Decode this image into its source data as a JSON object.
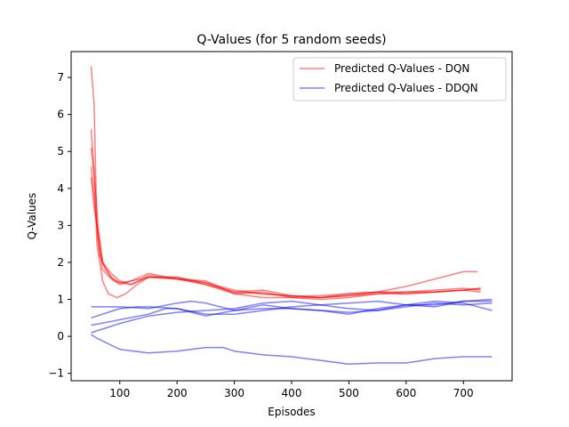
{
  "chart_data": {
    "type": "line",
    "title": "Q-Values (for 5 random seeds)",
    "xlabel": "Episodes",
    "ylabel": "Q-Values",
    "xlim": [
      15,
      785
    ],
    "ylim": [
      -1.2,
      7.7
    ],
    "xticks": [
      100,
      200,
      300,
      400,
      500,
      600,
      700
    ],
    "yticks": [
      -1,
      0,
      1,
      2,
      3,
      4,
      5,
      6,
      7
    ],
    "grid": false,
    "legend_position": "top-right",
    "colors": {
      "DQN": "#ff0000",
      "DDQN": "#0000ff"
    },
    "series": [
      {
        "name": "Predicted Q-Values - DQN",
        "group": "DQN",
        "x": [
          50,
          55,
          60,
          65,
          75,
          90,
          100,
          110,
          120,
          150,
          200,
          250,
          300,
          350,
          400,
          450,
          500,
          550,
          600,
          650,
          700,
          725
        ],
        "y": [
          7.3,
          6.3,
          3.0,
          2.2,
          1.8,
          1.5,
          1.4,
          1.45,
          1.5,
          1.7,
          1.55,
          1.4,
          1.2,
          1.15,
          1.08,
          1.1,
          1.15,
          1.2,
          1.35,
          1.55,
          1.75,
          1.75
        ]
      },
      {
        "name": "",
        "group": "DQN",
        "x": [
          50,
          55,
          60,
          70,
          80,
          95,
          110,
          130,
          150,
          200,
          250,
          300,
          350,
          400,
          450,
          500,
          550,
          600,
          650,
          700,
          730
        ],
        "y": [
          5.6,
          4.5,
          2.5,
          1.5,
          1.15,
          1.05,
          1.15,
          1.4,
          1.6,
          1.6,
          1.4,
          1.15,
          1.05,
          1.05,
          1.05,
          1.1,
          1.15,
          1.15,
          1.2,
          1.25,
          1.3
        ]
      },
      {
        "name": "",
        "group": "DQN",
        "x": [
          50,
          55,
          62,
          70,
          85,
          100,
          120,
          150,
          200,
          250,
          300,
          350,
          400,
          450,
          500,
          550,
          600,
          650,
          700,
          730
        ],
        "y": [
          5.1,
          4.4,
          3.0,
          2.0,
          1.6,
          1.45,
          1.4,
          1.65,
          1.55,
          1.45,
          1.25,
          1.15,
          1.1,
          1.05,
          1.15,
          1.2,
          1.15,
          1.2,
          1.25,
          1.3
        ]
      },
      {
        "name": "",
        "group": "DQN",
        "x": [
          50,
          55,
          62,
          70,
          85,
          100,
          120,
          150,
          200,
          250,
          300,
          350,
          400,
          450,
          500,
          550,
          600,
          650,
          700,
          730
        ],
        "y": [
          4.6,
          3.8,
          2.6,
          1.8,
          1.55,
          1.45,
          1.5,
          1.6,
          1.55,
          1.5,
          1.15,
          1.2,
          1.05,
          1.0,
          1.05,
          1.15,
          1.2,
          1.25,
          1.3,
          1.25
        ]
      },
      {
        "name": "",
        "group": "DQN",
        "x": [
          50,
          55,
          62,
          70,
          85,
          100,
          120,
          150,
          200,
          250,
          300,
          350,
          400,
          450,
          500,
          550,
          600,
          650,
          700,
          730
        ],
        "y": [
          4.3,
          3.5,
          2.8,
          2.0,
          1.7,
          1.5,
          1.4,
          1.6,
          1.6,
          1.45,
          1.2,
          1.25,
          1.1,
          1.05,
          1.1,
          1.2,
          1.2,
          1.2,
          1.25,
          1.2
        ]
      },
      {
        "name": "Predicted Q-Values - DDQN",
        "group": "DDQN",
        "x": [
          50,
          100,
          150,
          200,
          225,
          250,
          300,
          350,
          400,
          450,
          500,
          550,
          600,
          650,
          700,
          750
        ],
        "y": [
          0.8,
          0.8,
          0.75,
          0.9,
          0.95,
          0.9,
          0.7,
          0.75,
          0.75,
          0.7,
          0.6,
          0.75,
          0.85,
          0.85,
          0.95,
          0.95
        ]
      },
      {
        "name": "",
        "group": "DDQN",
        "x": [
          50,
          100,
          130,
          150,
          200,
          250,
          300,
          350,
          400,
          450,
          500,
          550,
          600,
          650,
          700,
          750
        ],
        "y": [
          0.5,
          0.75,
          0.8,
          0.8,
          0.75,
          0.6,
          0.6,
          0.7,
          0.8,
          0.85,
          0.75,
          0.7,
          0.85,
          0.95,
          0.9,
          0.7
        ]
      },
      {
        "name": "",
        "group": "DDQN",
        "x": [
          50,
          100,
          150,
          180,
          200,
          250,
          300,
          350,
          400,
          450,
          500,
          550,
          600,
          650,
          700,
          750
        ],
        "y": [
          0.3,
          0.45,
          0.6,
          0.75,
          0.75,
          0.55,
          0.7,
          0.85,
          0.75,
          0.7,
          0.65,
          0.7,
          0.8,
          0.9,
          0.85,
          0.9
        ]
      },
      {
        "name": "",
        "group": "DDQN",
        "x": [
          50,
          100,
          150,
          200,
          250,
          300,
          350,
          400,
          450,
          500,
          550,
          600,
          650,
          700,
          750
        ],
        "y": [
          0.1,
          0.35,
          0.55,
          0.65,
          0.7,
          0.75,
          0.9,
          0.95,
          0.85,
          0.9,
          0.95,
          0.85,
          0.8,
          0.95,
          1.0
        ]
      },
      {
        "name": "",
        "group": "DDQN",
        "x": [
          50,
          60,
          100,
          150,
          200,
          250,
          280,
          300,
          350,
          400,
          450,
          500,
          550,
          600,
          650,
          700,
          750
        ],
        "y": [
          0.05,
          -0.05,
          -0.35,
          -0.45,
          -0.4,
          -0.3,
          -0.3,
          -0.4,
          -0.5,
          -0.55,
          -0.65,
          -0.75,
          -0.72,
          -0.72,
          -0.6,
          -0.55,
          -0.55
        ]
      }
    ]
  }
}
